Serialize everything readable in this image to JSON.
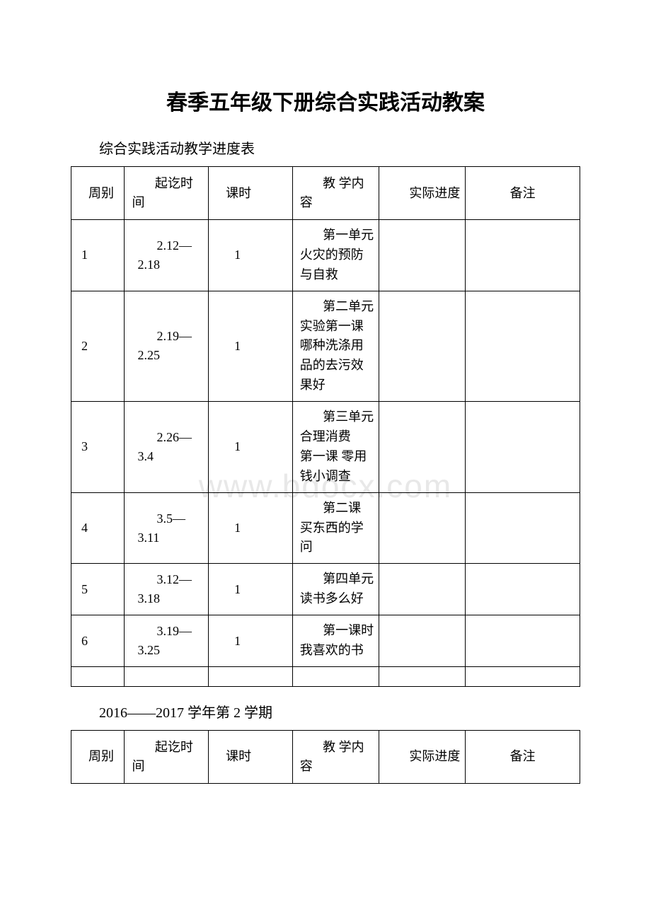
{
  "watermark": "www.bdocx.com",
  "title": "春季五年级下册综合实践活动教案",
  "subtitle": "综合实践活动教学进度表",
  "semester_line": "2016——2017 学年第 2 学期",
  "table1": {
    "headers": {
      "week": "周别",
      "date": "起讫时间",
      "hours": "课时",
      "content": "教 学内 容",
      "progress": "实际进度",
      "note": "备注"
    },
    "rows": [
      {
        "week": "1",
        "date": "2.12—2.18",
        "hours": "1",
        "content": "第一单元 火灾的预防与自救",
        "progress": "",
        "note": ""
      },
      {
        "week": "2",
        "date": "2.19—2.25",
        "hours": "1",
        "content": "第二单元 实验第一课 哪种洗涤用品的去污效果好",
        "progress": "",
        "note": ""
      },
      {
        "week": "3",
        "date": "2.26—3.4",
        "hours": "1",
        "content": "第三单元 合理消费\n第一课 零用钱小调查",
        "progress": "",
        "note": ""
      },
      {
        "week": "4",
        "date": "3.5—3.11",
        "hours": "1",
        "content": "第二课 买东西的学问",
        "progress": "",
        "note": ""
      },
      {
        "week": "5",
        "date": "3.12—3.18",
        "hours": "1",
        "content": "第四单元 读书多么好",
        "progress": "",
        "note": ""
      },
      {
        "week": "6",
        "date": "3.19—3.25",
        "hours": "1",
        "content": "第一课时 我喜欢的书",
        "progress": "",
        "note": ""
      }
    ]
  },
  "table2": {
    "headers": {
      "week": "周别",
      "date": "起讫时间",
      "hours": "课时",
      "content": "教 学内 容",
      "progress": "实际进度",
      "note": "备注"
    }
  }
}
